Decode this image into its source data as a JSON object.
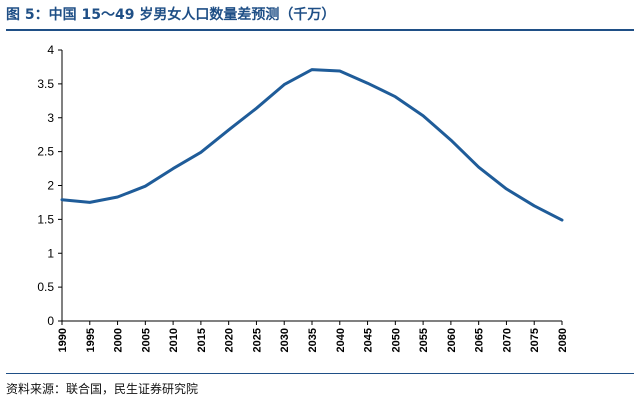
{
  "figure": {
    "title": "图 5：中国 15～49 岁男女人口数量差预测（千万）",
    "source": "资料来源：联合国，民生证券研究院"
  },
  "chart_data": {
    "type": "line",
    "title": "图 5：中国 15～49 岁男女人口数量差预测（千万）",
    "xlabel": "",
    "ylabel": "",
    "x": [
      1990,
      1995,
      2000,
      2005,
      2010,
      2015,
      2020,
      2025,
      2030,
      2035,
      2040,
      2045,
      2050,
      2055,
      2060,
      2065,
      2070,
      2075,
      2080
    ],
    "series": [
      {
        "values": [
          1.79,
          1.75,
          1.83,
          1.99,
          2.25,
          2.49,
          2.82,
          3.14,
          3.49,
          3.71,
          3.69,
          3.51,
          3.31,
          3.03,
          2.67,
          2.27,
          1.95,
          1.7,
          1.49
        ],
        "color": "#1f5c99"
      }
    ],
    "ylim": [
      0,
      4
    ],
    "yticks": [
      "0",
      "0.5",
      "1",
      "1.5",
      "2",
      "2.5",
      "3",
      "3.5",
      "4"
    ],
    "xticks": [
      "1990",
      "1995",
      "2000",
      "2005",
      "2010",
      "2015",
      "2020",
      "2025",
      "2030",
      "2035",
      "2040",
      "2045",
      "2050",
      "2055",
      "2060",
      "2065",
      "2070",
      "2075",
      "2080"
    ],
    "grid": false,
    "legend": "none"
  }
}
